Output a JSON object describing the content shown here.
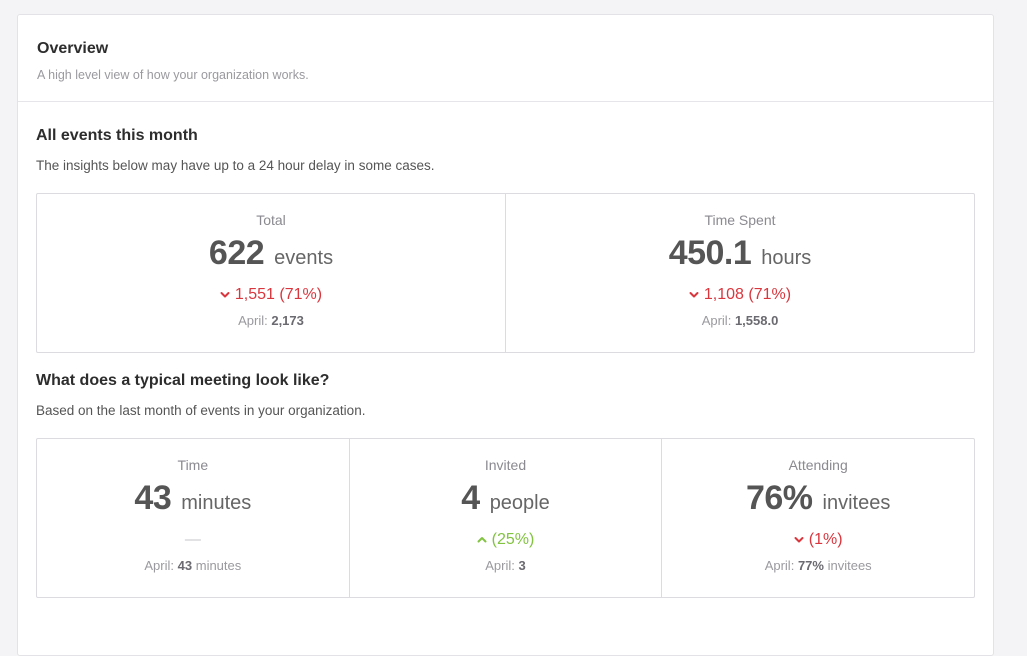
{
  "header": {
    "title": "Overview",
    "subtitle": "A high level view of how your organization works."
  },
  "events_section": {
    "title": "All events this month",
    "description": "The insights below may have up to a 24 hour delay in some cases.",
    "stats": [
      {
        "label": "Total",
        "value": "622",
        "unit": "events",
        "trend": "down",
        "trend_icon": "chevron-down-icon",
        "change": "1,551 (71%)",
        "prev_label": "April:",
        "prev_value": "2,173",
        "prev_suffix": ""
      },
      {
        "label": "Time Spent",
        "value": "450.1",
        "unit": "hours",
        "trend": "down",
        "trend_icon": "chevron-down-icon",
        "change": "1,108 (71%)",
        "prev_label": "April:",
        "prev_value": "1,558.0",
        "prev_suffix": ""
      }
    ]
  },
  "meeting_section": {
    "title": "What does a typical meeting look like?",
    "description": "Based on the last month of events in your organization.",
    "stats": [
      {
        "label": "Time",
        "value": "43",
        "unit": "minutes",
        "trend": "neutral",
        "change": "—",
        "prev_label": "April:",
        "prev_value": "43",
        "prev_suffix": "minutes"
      },
      {
        "label": "Invited",
        "value": "4",
        "unit": "people",
        "trend": "up",
        "trend_icon": "chevron-up-icon",
        "change": "(25%)",
        "prev_label": "April:",
        "prev_value": "3",
        "prev_suffix": ""
      },
      {
        "label": "Attending",
        "value": "76%",
        "unit": "invitees",
        "trend": "down",
        "trend_icon": "chevron-down-icon",
        "change": "(1%)",
        "prev_label": "April:",
        "prev_value": "77%",
        "prev_suffix": "invitees"
      }
    ]
  },
  "colors": {
    "down": "#d9363e",
    "up": "#82c341",
    "neutral": "#c5c5c9"
  }
}
